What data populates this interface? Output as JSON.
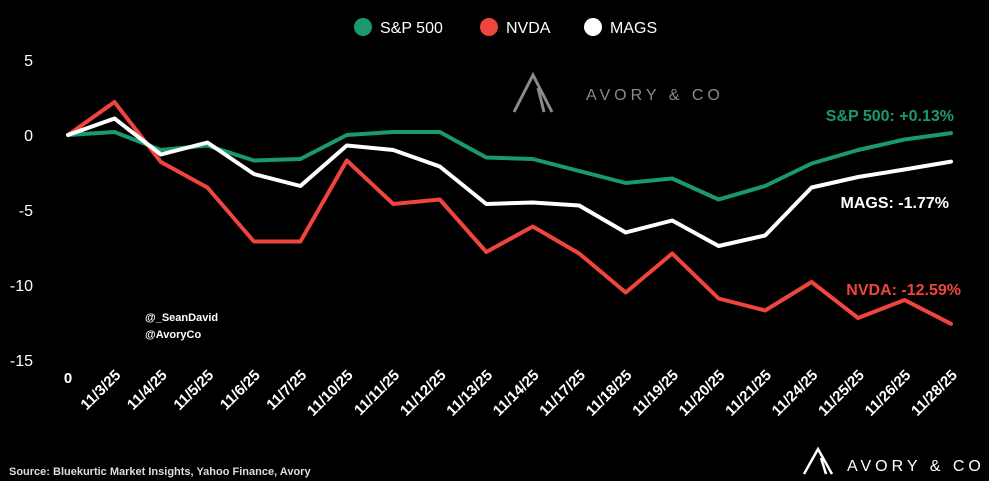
{
  "chart_data": {
    "type": "line",
    "categories": [
      "0",
      "11/3/25",
      "11/4/25",
      "11/5/25",
      "11/6/25",
      "11/7/25",
      "11/10/25",
      "11/11/25",
      "11/12/25",
      "11/13/25",
      "11/14/25",
      "11/17/25",
      "11/18/25",
      "11/19/25",
      "11/20/25",
      "11/21/25",
      "11/24/25",
      "11/25/25",
      "11/26/25",
      "11/28/25"
    ],
    "series": [
      {
        "name": "S&P 500",
        "color": "#1a9a6c",
        "end_label": "S&P 500: +0.13%",
        "values": [
          0,
          0.2,
          -1.0,
          -0.7,
          -1.7,
          -1.6,
          0.0,
          0.2,
          0.2,
          -1.5,
          -1.6,
          -2.4,
          -3.2,
          -2.9,
          -4.3,
          -3.4,
          -1.9,
          -1.0,
          -0.3,
          0.13
        ]
      },
      {
        "name": "NVDA",
        "color": "#f0443e",
        "end_label": "NVDA: -12.59%",
        "values": [
          0,
          2.2,
          -1.8,
          -3.5,
          -7.1,
          -7.1,
          -1.7,
          -4.6,
          -4.3,
          -7.8,
          -6.1,
          -7.9,
          -10.5,
          -7.9,
          -10.9,
          -11.7,
          -9.8,
          -12.2,
          -11.0,
          -12.59
        ]
      },
      {
        "name": "MAGS",
        "color": "#ffffff",
        "end_label": "MAGS: -1.77%",
        "values": [
          0,
          1.1,
          -1.3,
          -0.5,
          -2.6,
          -3.4,
          -0.7,
          -1.0,
          -2.1,
          -4.6,
          -4.5,
          -4.7,
          -6.5,
          -5.7,
          -7.4,
          -6.7,
          -3.5,
          -2.8,
          -2.3,
          -1.77
        ]
      }
    ],
    "yticks": [
      "5",
      "0",
      "-5",
      "-10",
      "-15"
    ],
    "ylim": [
      -15,
      5
    ],
    "legend": "top-center",
    "grid": false
  },
  "watermark": {
    "text": "AVORY & CO"
  },
  "handles": [
    "@_SeanDavid",
    "@AvoryCo"
  ],
  "source": "Source: Bluekurtic Market Insights, Yahoo Finance, Avory",
  "brand": {
    "text": "AVORY & CO"
  }
}
